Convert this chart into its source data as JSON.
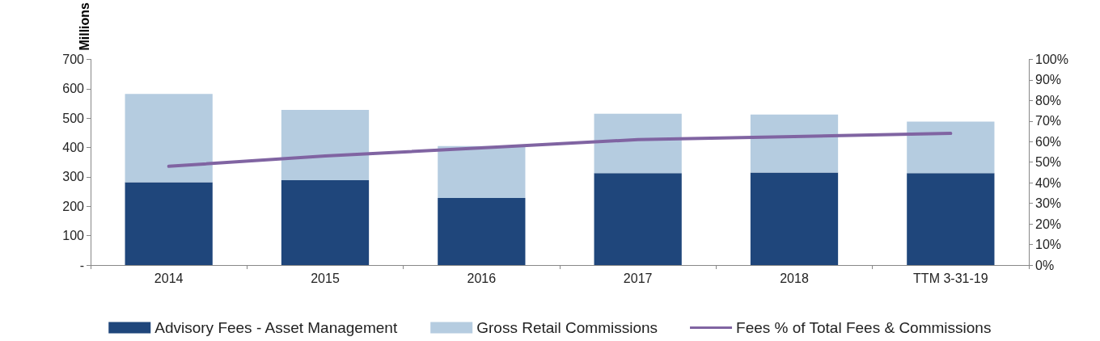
{
  "chart_data": {
    "type": "bar",
    "stacked": true,
    "ylabel": "Millions",
    "categories": [
      "2014",
      "2015",
      "2016",
      "2017",
      "2018",
      "TTM 3-31-19"
    ],
    "series": [
      {
        "name": "Advisory Fees - Asset Management",
        "color": "#1f467b",
        "values": [
          282,
          289,
          228,
          313,
          315,
          313
        ]
      },
      {
        "name": "Gross Retail Commissions",
        "color": "#b5cce0",
        "values": [
          300,
          239,
          177,
          202,
          197,
          175
        ]
      },
      {
        "name": "Fees % of Total Fees & Commissions",
        "type": "line",
        "axis": "y2",
        "color": "#8064a2",
        "values": [
          48,
          53,
          57,
          61,
          62.5,
          64
        ]
      }
    ],
    "ylim": [
      0,
      700
    ],
    "yticks": [
      {
        "value": 0,
        "label": "-"
      },
      100,
      200,
      300,
      400,
      500,
      600,
      700
    ],
    "y2lim": [
      0,
      100
    ],
    "y2ticks": [
      {
        "value": 0,
        "label": "0%"
      },
      {
        "value": 10,
        "label": "10%"
      },
      {
        "value": 20,
        "label": "20%"
      },
      {
        "value": 30,
        "label": "30%"
      },
      {
        "value": 40,
        "label": "40%"
      },
      {
        "value": 50,
        "label": "50%"
      },
      {
        "value": 60,
        "label": "60%"
      },
      {
        "value": 70,
        "label": "70%"
      },
      {
        "value": 80,
        "label": "80%"
      },
      {
        "value": 90,
        "label": "90%"
      },
      {
        "value": 100,
        "label": "100%"
      }
    ],
    "grid": false,
    "legend": "bottom",
    "marker": "none",
    "line_style": "solid"
  }
}
